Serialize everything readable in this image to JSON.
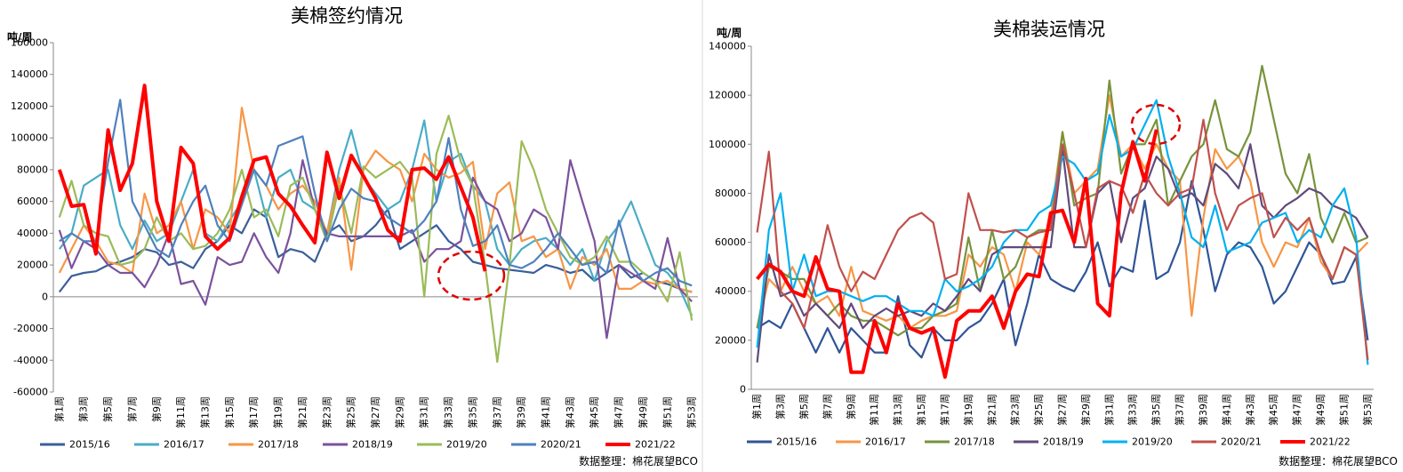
{
  "chart_data": [
    {
      "type": "line",
      "title": "美棉签约情况",
      "y_label": "吨/周",
      "source": "数据整理：棉花展望BCO",
      "categories": [
        "第1周",
        null,
        "第3周",
        null,
        "第5周",
        null,
        "第7周",
        null,
        "第9周",
        null,
        "第11周",
        null,
        "第13周",
        null,
        "第15周",
        null,
        "第17周",
        null,
        "第19周",
        null,
        "第21周",
        null,
        "第23周",
        null,
        "第25周",
        null,
        "第27周",
        null,
        "第29周",
        null,
        "第31周",
        null,
        "第33周",
        null,
        "第35周",
        null,
        "第37周",
        null,
        "第39周",
        null,
        "第41周",
        null,
        "第43周",
        null,
        "第45周",
        null,
        "第47周",
        null,
        "第49周",
        null,
        "第51周",
        null,
        "第53周"
      ],
      "ylim": [
        -60000,
        160000
      ],
      "yticks": [
        -60000,
        -40000,
        -20000,
        0,
        20000,
        40000,
        60000,
        80000,
        100000,
        120000,
        140000,
        160000
      ],
      "series": [
        {
          "name": "2015/16",
          "color": "#3a5f9a",
          "values": [
            3000,
            13000,
            15000,
            16000,
            20000,
            22000,
            25000,
            30000,
            28000,
            20000,
            22000,
            18000,
            30000,
            35000,
            45000,
            40000,
            55000,
            50000,
            25000,
            30000,
            28000,
            22000,
            40000,
            45000,
            35000,
            38000,
            45000,
            55000,
            30000,
            35000,
            40000,
            45000,
            35000,
            30000,
            22000,
            20000,
            18000,
            17000,
            16000,
            15000,
            20000,
            18000,
            15000,
            17000,
            10000,
            15000,
            20000,
            12000,
            15000,
            10000,
            8000,
            5000,
            3000
          ]
        },
        {
          "name": "2016/17",
          "color": "#4bacc6",
          "values": [
            30000,
            40000,
            70000,
            75000,
            80000,
            45000,
            30000,
            48000,
            35000,
            40000,
            60000,
            80000,
            40000,
            35000,
            48000,
            60000,
            80000,
            50000,
            75000,
            80000,
            60000,
            55000,
            40000,
            80000,
            105000,
            75000,
            65000,
            55000,
            60000,
            80000,
            111000,
            60000,
            85000,
            90000,
            70000,
            60000,
            30000,
            20000,
            30000,
            35000,
            37000,
            30000,
            20000,
            30000,
            10000,
            35000,
            45000,
            60000,
            40000,
            20000,
            15000,
            5000,
            -12000
          ]
        },
        {
          "name": "2017/18",
          "color": "#f79646",
          "values": [
            15000,
            30000,
            45000,
            35000,
            22000,
            20000,
            15000,
            65000,
            40000,
            45000,
            60000,
            30000,
            55000,
            50000,
            40000,
            119000,
            80000,
            70000,
            55000,
            65000,
            70000,
            60000,
            40000,
            75000,
            17000,
            80000,
            92000,
            85000,
            80000,
            60000,
            90000,
            80000,
            75000,
            78000,
            85000,
            30000,
            65000,
            72000,
            35000,
            38000,
            25000,
            30000,
            5000,
            25000,
            20000,
            30000,
            5000,
            5000,
            10000,
            8000,
            10000,
            5000,
            3000
          ]
        },
        {
          "name": "2018/19",
          "color": "#7b529c",
          "values": [
            42000,
            18000,
            35000,
            30000,
            20000,
            15000,
            15000,
            6000,
            20000,
            40000,
            8000,
            10000,
            -5000,
            25000,
            20000,
            22000,
            40000,
            25000,
            15000,
            40000,
            86000,
            55000,
            40000,
            38000,
            38000,
            38000,
            38000,
            38000,
            38000,
            42000,
            22000,
            30000,
            30000,
            35000,
            75000,
            60000,
            55000,
            35000,
            40000,
            55000,
            50000,
            30000,
            86000,
            60000,
            35000,
            -26000,
            20000,
            15000,
            10000,
            5000,
            37000,
            5000,
            -3000
          ]
        },
        {
          "name": "2019/20",
          "color": "#9bbb59",
          "values": [
            50000,
            73000,
            45000,
            40000,
            38000,
            20000,
            22000,
            30000,
            50000,
            35000,
            40000,
            30000,
            32000,
            40000,
            55000,
            80000,
            50000,
            55000,
            38000,
            70000,
            75000,
            55000,
            35000,
            70000,
            40000,
            82000,
            75000,
            80000,
            85000,
            75000,
            0,
            90000,
            114000,
            85000,
            70000,
            20000,
            -41000,
            20000,
            98000,
            80000,
            55000,
            40000,
            25000,
            20000,
            25000,
            38000,
            22000,
            22000,
            15000,
            10000,
            -3000,
            28000,
            -15000
          ]
        },
        {
          "name": "2020/21",
          "color": "#4f81bd",
          "values": [
            35000,
            40000,
            35000,
            35000,
            85000,
            124000,
            60000,
            45000,
            30000,
            25000,
            45000,
            60000,
            70000,
            45000,
            35000,
            58000,
            80000,
            70000,
            95000,
            98000,
            101000,
            65000,
            35000,
            55000,
            68000,
            62000,
            60000,
            50000,
            45000,
            40000,
            48000,
            60000,
            100000,
            55000,
            32000,
            35000,
            45000,
            20000,
            18000,
            22000,
            30000,
            40000,
            30000,
            20000,
            22000,
            15000,
            48000,
            20000,
            10000,
            15000,
            18000,
            10000,
            7000
          ]
        },
        {
          "name": "2021/22",
          "color": "#ff0000",
          "values": [
            80000,
            57000,
            58000,
            27000,
            105000,
            67000,
            84000,
            133000,
            60000,
            35000,
            94000,
            84000,
            38000,
            30000,
            37000,
            63000,
            86000,
            88000,
            65000,
            57000,
            45000,
            34000,
            91000,
            62000,
            89000,
            76000,
            62000,
            42000,
            35000,
            80000,
            81000,
            74000,
            88000,
            69000,
            50000,
            16000,
            null,
            null,
            null,
            null,
            null,
            null,
            null,
            null,
            null,
            null,
            null,
            null,
            null,
            null,
            null,
            null,
            null
          ]
        }
      ]
    },
    {
      "type": "line",
      "title": "美棉装运情况",
      "y_label": "吨/周",
      "source": "数据整理：棉花展望BCO",
      "categories": [
        "第1周",
        null,
        "第3周",
        null,
        "第5周",
        null,
        "第7周",
        null,
        "第9周",
        null,
        "第11周",
        null,
        "第13周",
        null,
        "第15周",
        null,
        "第17周",
        null,
        "第19周",
        null,
        "第21周",
        null,
        "第23周",
        null,
        "第25周",
        null,
        "第27周",
        null,
        "第29周",
        null,
        "第31周",
        null,
        "第33周",
        null,
        "第35周",
        null,
        "第37周",
        null,
        "第39周",
        null,
        "第41周",
        null,
        "第43周",
        null,
        "第45周",
        null,
        "第47周",
        null,
        "第49周",
        null,
        "第51周",
        null,
        "第53周"
      ],
      "ylim": [
        0,
        140000
      ],
      "yticks": [
        0,
        20000,
        40000,
        60000,
        80000,
        100000,
        120000,
        140000
      ],
      "series": [
        {
          "name": "2015/16",
          "color": "#2f5597",
          "values": [
            25000,
            28000,
            25000,
            35000,
            25000,
            15000,
            25000,
            15000,
            25000,
            20000,
            15000,
            15000,
            38000,
            18000,
            13000,
            25000,
            20000,
            20000,
            25000,
            28000,
            35000,
            45000,
            18000,
            35000,
            55000,
            45000,
            42000,
            40000,
            48000,
            60000,
            42000,
            50000,
            48000,
            77000,
            45000,
            48000,
            60000,
            85000,
            65000,
            40000,
            55000,
            60000,
            58000,
            50000,
            35000,
            40000,
            50000,
            60000,
            55000,
            43000,
            44000,
            54000,
            20000
          ]
        },
        {
          "name": "2016/17",
          "color": "#f79646",
          "values": [
            25000,
            45000,
            40000,
            50000,
            40000,
            35000,
            38000,
            30000,
            50000,
            32000,
            30000,
            28000,
            30000,
            25000,
            28000,
            30000,
            30000,
            32000,
            55000,
            50000,
            58000,
            55000,
            40000,
            60000,
            55000,
            70000,
            105000,
            80000,
            85000,
            90000,
            120000,
            95000,
            100000,
            90000,
            100000,
            90000,
            85000,
            30000,
            70000,
            98000,
            90000,
            95000,
            85000,
            60000,
            50000,
            60000,
            58000,
            70000,
            52000,
            45000,
            58000,
            55000,
            60000
          ]
        },
        {
          "name": "2017/18",
          "color": "#77933c",
          "values": [
            25000,
            50000,
            48000,
            45000,
            45000,
            35000,
            30000,
            35000,
            30000,
            28000,
            28000,
            25000,
            22000,
            25000,
            25000,
            30000,
            32000,
            35000,
            62000,
            40000,
            65000,
            45000,
            50000,
            62000,
            65000,
            65000,
            105000,
            75000,
            78000,
            80000,
            126000,
            88000,
            100000,
            100000,
            110000,
            75000,
            85000,
            95000,
            100000,
            118000,
            98000,
            95000,
            105000,
            132000,
            110000,
            88000,
            80000,
            96000,
            70000,
            60000,
            72000,
            60000,
            62000
          ]
        },
        {
          "name": "2018/19",
          "color": "#604a7b",
          "values": [
            11000,
            55000,
            38000,
            40000,
            30000,
            35000,
            30000,
            25000,
            35000,
            25000,
            30000,
            33000,
            30000,
            32000,
            30000,
            35000,
            32000,
            38000,
            45000,
            40000,
            55000,
            58000,
            58000,
            58000,
            58000,
            58000,
            98000,
            58000,
            58000,
            80000,
            85000,
            60000,
            78000,
            82000,
            95000,
            90000,
            78000,
            80000,
            75000,
            92000,
            88000,
            82000,
            100000,
            75000,
            70000,
            75000,
            78000,
            82000,
            80000,
            75000,
            73000,
            70000,
            62000
          ]
        },
        {
          "name": "2019/20",
          "color": "#00b0f0",
          "values": [
            17000,
            65000,
            80000,
            40000,
            55000,
            38000,
            40000,
            40000,
            38000,
            36000,
            38000,
            38000,
            35000,
            32000,
            32000,
            30000,
            45000,
            40000,
            42000,
            45000,
            50000,
            60000,
            65000,
            65000,
            72000,
            75000,
            95000,
            92000,
            85000,
            88000,
            112000,
            95000,
            98000,
            108000,
            118000,
            95000,
            80000,
            62000,
            58000,
            75000,
            56000,
            58000,
            60000,
            68000,
            70000,
            72000,
            60000,
            65000,
            62000,
            75000,
            82000,
            62000,
            10000
          ]
        },
        {
          "name": "2020/21",
          "color": "#c0504d",
          "values": [
            64000,
            97000,
            40000,
            35000,
            25000,
            45000,
            67000,
            50000,
            40000,
            48000,
            45000,
            55000,
            65000,
            70000,
            72000,
            68000,
            45000,
            47000,
            80000,
            65000,
            65000,
            64000,
            65000,
            62000,
            64000,
            65000,
            100000,
            80000,
            58000,
            82000,
            85000,
            83000,
            72000,
            88000,
            80000,
            75000,
            80000,
            82000,
            110000,
            80000,
            65000,
            75000,
            78000,
            80000,
            62000,
            70000,
            65000,
            70000,
            55000,
            45000,
            58000,
            55000,
            12000
          ]
        },
        {
          "name": "2021/22",
          "color": "#ff0000",
          "values": [
            45000,
            51000,
            48000,
            40000,
            38000,
            54000,
            41000,
            40000,
            7000,
            7000,
            28000,
            15000,
            35000,
            25000,
            23000,
            25000,
            5000,
            28000,
            32000,
            32000,
            38000,
            25000,
            40000,
            47000,
            46000,
            72000,
            73000,
            60000,
            86000,
            35000,
            30000,
            80000,
            101000,
            85000,
            106000,
            null,
            null,
            null,
            null,
            null,
            null,
            null,
            null,
            null,
            null,
            null,
            null,
            null,
            null,
            null,
            null,
            null,
            null
          ]
        }
      ]
    }
  ]
}
